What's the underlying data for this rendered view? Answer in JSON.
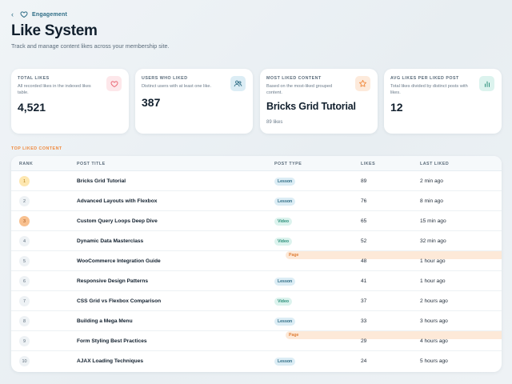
{
  "breadcrumb": {
    "back": "‹",
    "label": "Engagement"
  },
  "header": {
    "title": "Like System",
    "subtitle": "Track and manage content likes across your membership site."
  },
  "stats": [
    {
      "key": "TOTAL LIKES",
      "desc": "All recorded likes in the indexed likes table.",
      "value": "4,521",
      "sub": "",
      "icon": "heart-icon",
      "icon_color": "#e8626f",
      "icon_bg": "#fde7ea"
    },
    {
      "key": "USERS WHO LIKED",
      "desc": "Distinct users with at least one like.",
      "value": "387",
      "sub": "",
      "icon": "users-icon",
      "icon_color": "#2c6b84",
      "icon_bg": "#dcedf5"
    },
    {
      "key": "MOST LIKED CONTENT",
      "desc": "Based on the most-liked grouped content.",
      "value": "Bricks Grid Tutorial",
      "sub": "89 likes",
      "icon": "star-icon",
      "icon_color": "#f08a3e",
      "icon_bg": "#fdeadb"
    },
    {
      "key": "AVG LIKES PER LIKED POST",
      "desc": "Total likes divided by distinct posts with likes.",
      "value": "12",
      "sub": "",
      "icon": "bar-chart-icon",
      "icon_color": "#2b8f7a",
      "icon_bg": "#dcf3ee"
    }
  ],
  "section_label": "TOP LIKED CONTENT",
  "table": {
    "headers": {
      "rank": "RANK",
      "title": "POST TITLE",
      "type": "POST TYPE",
      "likes": "LIKES",
      "last": "LAST LIKED"
    },
    "rows": [
      {
        "rank": "1",
        "title": "Bricks Grid Tutorial",
        "type": "Lesson",
        "likes": "89",
        "last": "2 min ago"
      },
      {
        "rank": "2",
        "title": "Advanced Layouts with Flexbox",
        "type": "Lesson",
        "likes": "76",
        "last": "8 min ago"
      },
      {
        "rank": "3",
        "title": "Custom Query Loops Deep Dive",
        "type": "Video",
        "likes": "65",
        "last": "15 min ago"
      },
      {
        "rank": "4",
        "title": "Dynamic Data Masterclass",
        "type": "Video",
        "likes": "52",
        "last": "32 min ago"
      },
      {
        "rank": "5",
        "title": "WooCommerce Integration Guide",
        "type": "Page",
        "likes": "48",
        "last": "1 hour ago"
      },
      {
        "rank": "6",
        "title": "Responsive Design Patterns",
        "type": "Lesson",
        "likes": "41",
        "last": "1 hour ago"
      },
      {
        "rank": "7",
        "title": "CSS Grid vs Flexbox Comparison",
        "type": "Video",
        "likes": "37",
        "last": "2 hours ago"
      },
      {
        "rank": "8",
        "title": "Building a Mega Menu",
        "type": "Lesson",
        "likes": "33",
        "last": "3 hours ago"
      },
      {
        "rank": "9",
        "title": "Form Styling Best Practices",
        "type": "Page",
        "likes": "29",
        "last": "4 hours ago"
      },
      {
        "rank": "10",
        "title": "AJAX Loading Techniques",
        "type": "Lesson",
        "likes": "24",
        "last": "5 hours ago"
      }
    ]
  },
  "colors": {
    "accent": "#2c6b84",
    "section": "#f08a3e",
    "gold": "#fde7b0",
    "bronze": "#f8c08f"
  }
}
